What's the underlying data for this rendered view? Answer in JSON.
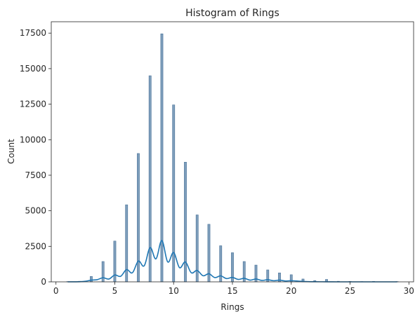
{
  "chart_data": {
    "type": "bar",
    "title": "Histogram of Rings",
    "xlabel": "Rings",
    "ylabel": "Count",
    "xlim": [
      -0.4,
      30.4
    ],
    "ylim": [
      0,
      18300
    ],
    "xticks": [
      0,
      5,
      10,
      15,
      20,
      25,
      30
    ],
    "yticks": [
      0,
      2500,
      5000,
      7500,
      10000,
      12500,
      15000,
      17500
    ],
    "grid": false,
    "legend": "none",
    "colors": {
      "bar_fill": "#7e9ebb",
      "bar_edge": "#4a739a",
      "kde": "#1f77b4",
      "axis": "#262626"
    },
    "bins": [
      {
        "x": 1,
        "count": 20
      },
      {
        "x": 2,
        "count": 40
      },
      {
        "x": 3,
        "count": 380
      },
      {
        "x": 4,
        "count": 1430
      },
      {
        "x": 5,
        "count": 2870
      },
      {
        "x": 6,
        "count": 5420
      },
      {
        "x": 7,
        "count": 9030
      },
      {
        "x": 8,
        "count": 14500
      },
      {
        "x": 9,
        "count": 17450
      },
      {
        "x": 10,
        "count": 12450
      },
      {
        "x": 11,
        "count": 8420
      },
      {
        "x": 12,
        "count": 4710
      },
      {
        "x": 13,
        "count": 4050
      },
      {
        "x": 14,
        "count": 2540
      },
      {
        "x": 15,
        "count": 2050
      },
      {
        "x": 16,
        "count": 1430
      },
      {
        "x": 17,
        "count": 1180
      },
      {
        "x": 18,
        "count": 840
      },
      {
        "x": 19,
        "count": 630
      },
      {
        "x": 20,
        "count": 500
      },
      {
        "x": 21,
        "count": 200
      },
      {
        "x": 22,
        "count": 90
      },
      {
        "x": 23,
        "count": 170
      },
      {
        "x": 24,
        "count": 40
      },
      {
        "x": 25,
        "count": 30
      },
      {
        "x": 26,
        "count": 20
      },
      {
        "x": 27,
        "count": 30
      },
      {
        "x": 29,
        "count": 20
      }
    ],
    "kde": {
      "x": [
        1,
        2,
        2.5,
        3,
        3.5,
        4,
        4.5,
        5,
        5.5,
        6,
        6.5,
        7,
        7.5,
        8,
        8.5,
        9,
        9.5,
        10,
        10.5,
        11,
        11.5,
        12,
        12.5,
        13,
        13.5,
        14,
        14.5,
        15,
        15.5,
        16,
        16.5,
        17,
        17.5,
        18,
        18.5,
        19,
        19.5,
        20,
        21,
        22,
        23,
        24,
        25,
        27,
        29
      ],
      "y": [
        0,
        10,
        40,
        120,
        150,
        290,
        200,
        480,
        390,
        860,
        640,
        1460,
        1130,
        2400,
        1620,
        2900,
        1400,
        2060,
        1000,
        1400,
        640,
        800,
        430,
        570,
        300,
        420,
        230,
        310,
        170,
        250,
        120,
        200,
        100,
        150,
        80,
        120,
        60,
        80,
        30,
        10,
        5,
        0,
        0,
        0,
        0
      ]
    }
  }
}
